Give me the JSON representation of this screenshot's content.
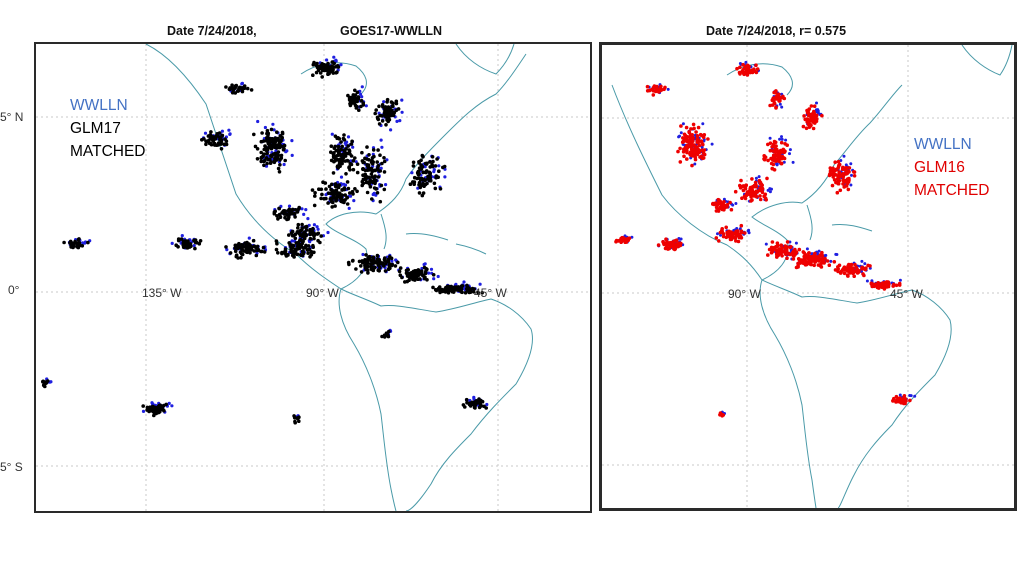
{
  "left_panel": {
    "title_date": "Date 7/24/2018,",
    "title_source": "GOES17-WWLLN",
    "legend": [
      {
        "text": "WWLLN",
        "color": "#4472c4"
      },
      {
        "text": "GLM17",
        "color": "#000000"
      },
      {
        "text": "MATCHED",
        "color": "#000000"
      }
    ],
    "lon_labels": [
      "135° W",
      "90° W",
      "45° W"
    ],
    "lat_labels": [
      "5° N",
      "0°",
      "5° S"
    ]
  },
  "right_panel": {
    "title": "Date 7/24/2018,  r= 0.575",
    "legend": [
      {
        "text": "WWLLN",
        "color": "#4472c4"
      },
      {
        "text": "GLM16",
        "color": "#e00000"
      },
      {
        "text": "MATCHED",
        "color": "#e00000"
      }
    ],
    "lon_labels": [
      "90° W",
      "45° W"
    ]
  },
  "colors": {
    "wwlln": "#1f1fe0",
    "glm17": "#000000",
    "glm16": "#ee0000",
    "coast": "#4a9aa8",
    "grid": "#c8c8c8"
  }
}
